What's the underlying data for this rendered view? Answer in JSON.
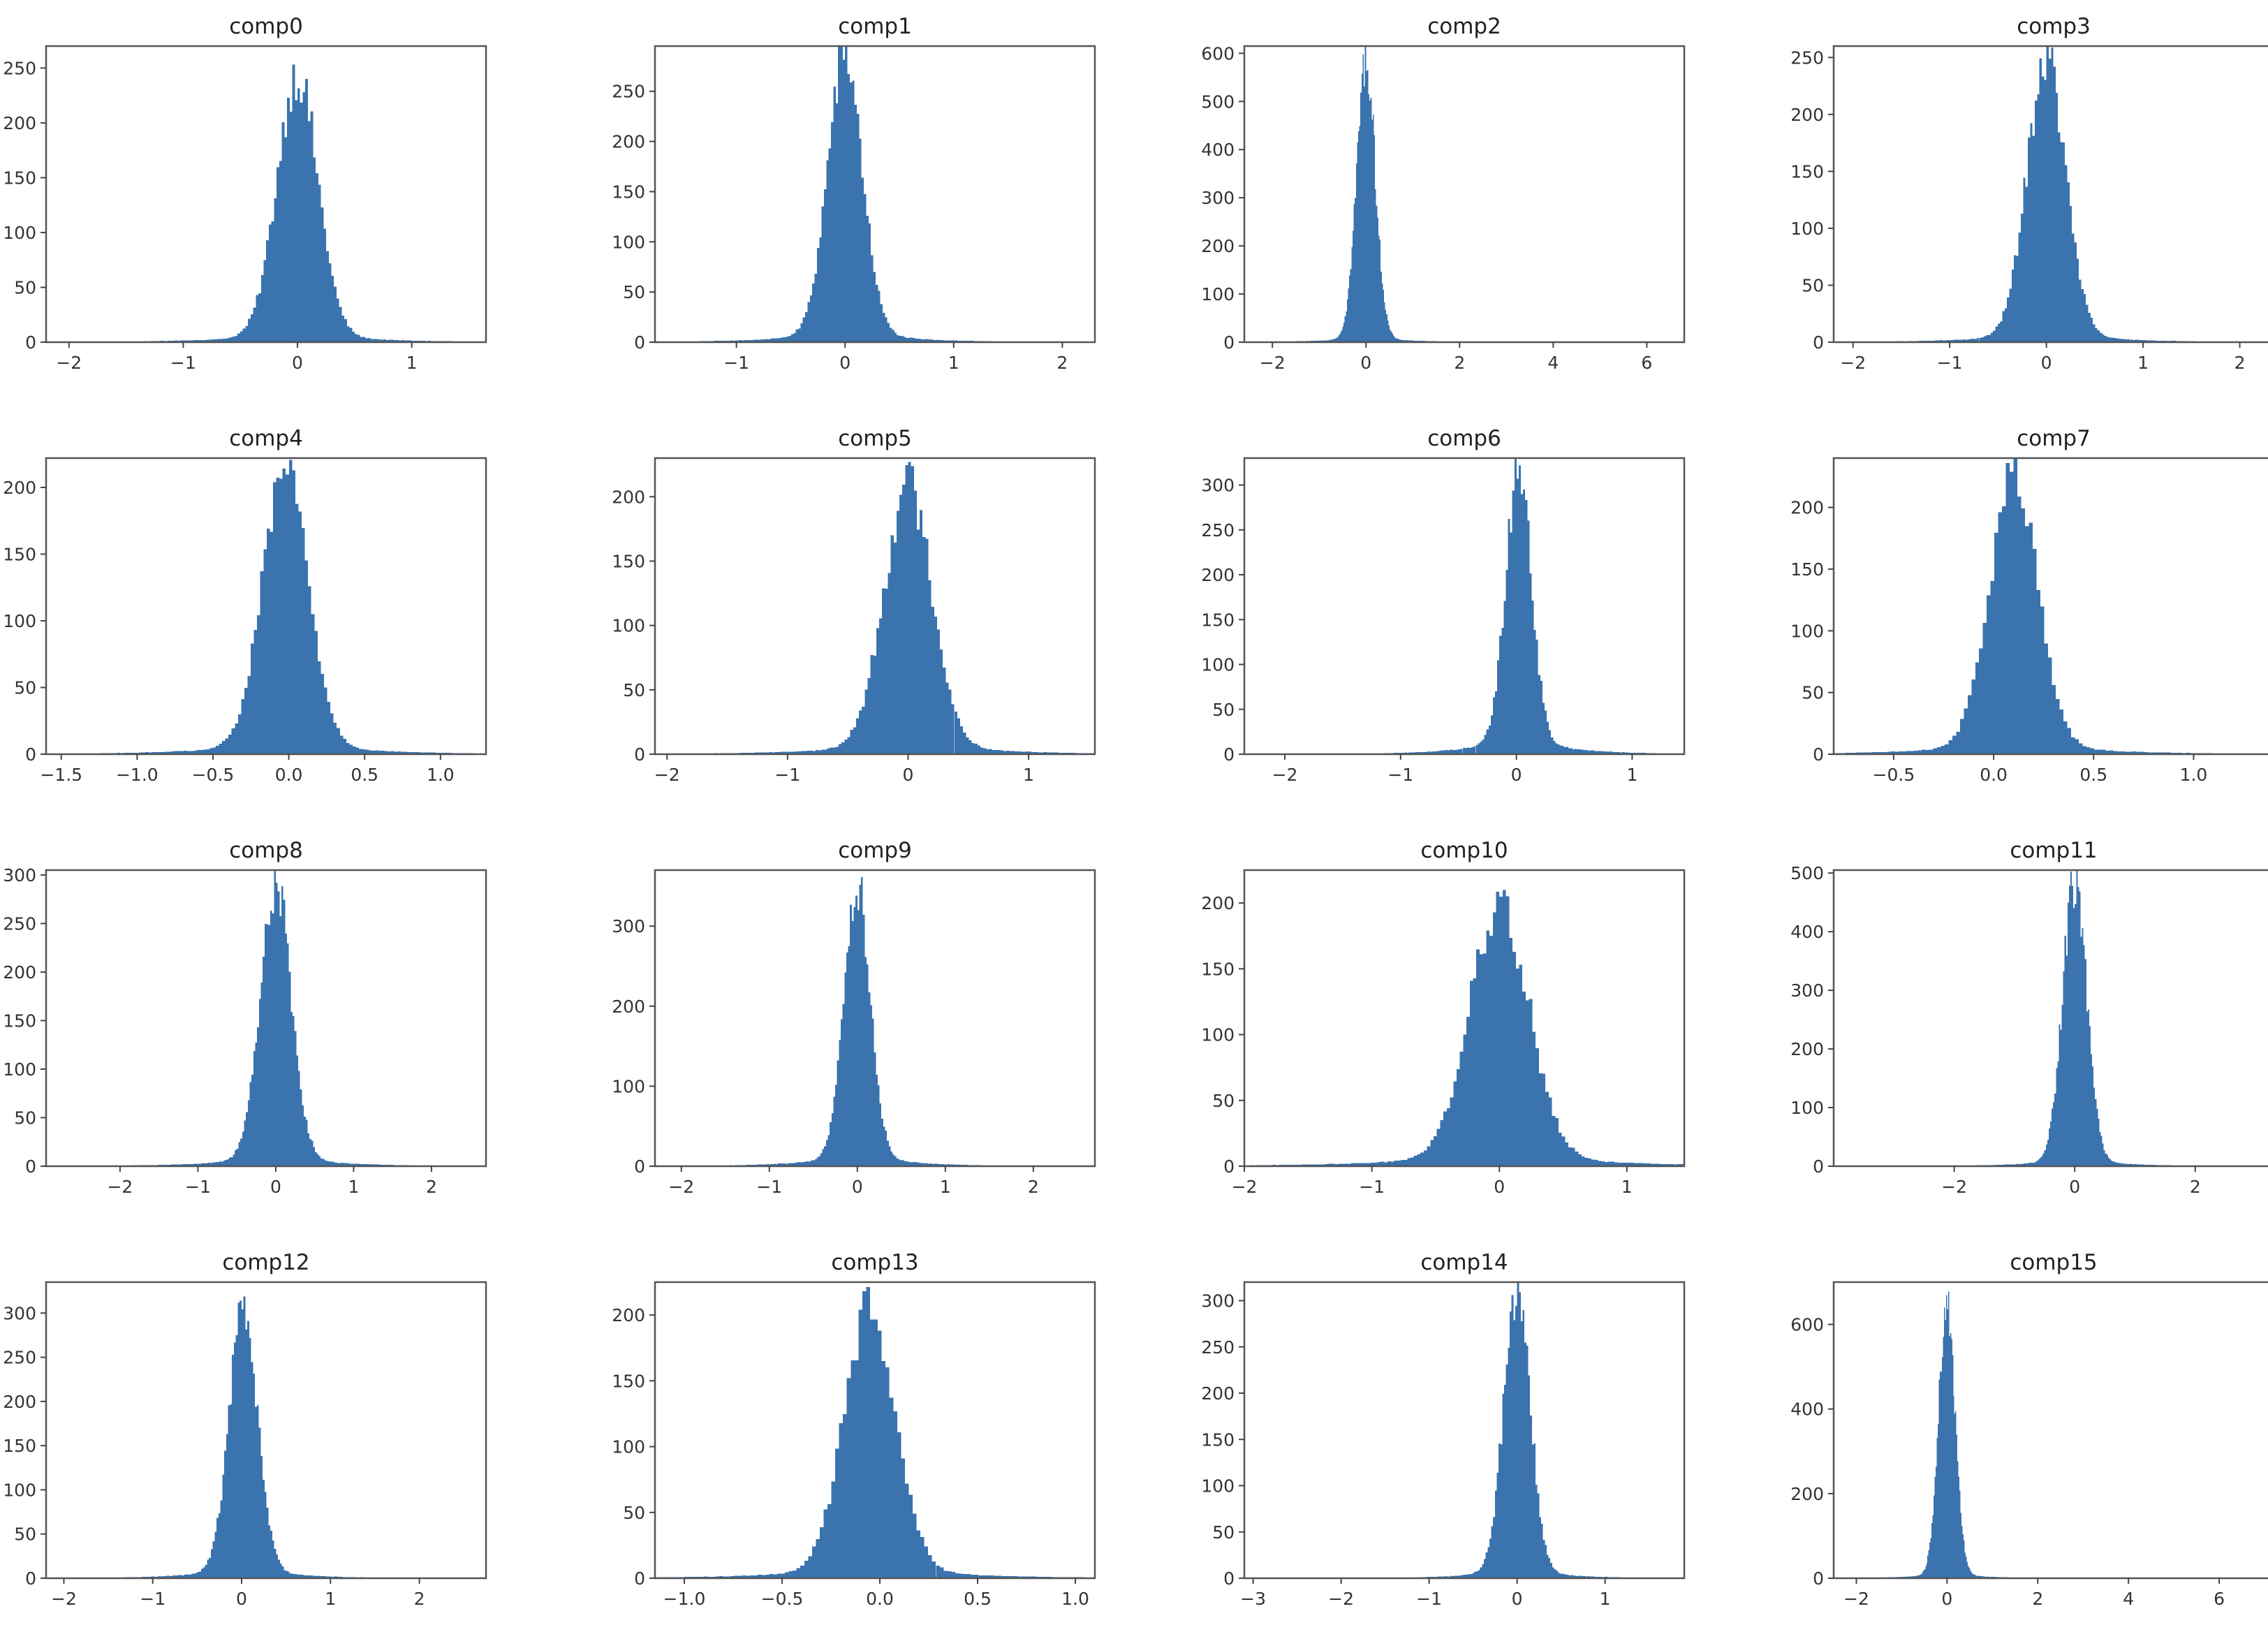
{
  "colors": {
    "bar": "#3a73ae",
    "frame": "#555555",
    "text": "#222222"
  },
  "chart_data": [
    {
      "type": "bar",
      "title": "comp0",
      "x_ticks": [
        -2,
        -1,
        0,
        1
      ],
      "x_tick_labels": [
        "−2",
        "−1",
        "0",
        "1"
      ],
      "y_ticks": [
        0,
        50,
        100,
        150,
        200,
        250
      ],
      "xlim": [
        -2.2,
        1.65
      ],
      "ylim": [
        0,
        270
      ],
      "distribution": {
        "mean": 0.0,
        "std": 0.18,
        "peak": 235,
        "tail": 0.04,
        "tail_scale": 3.0
      },
      "bins": 200
    },
    {
      "type": "bar",
      "title": "comp1",
      "x_ticks": [
        -1,
        0,
        1,
        2
      ],
      "x_tick_labels": [
        "−1",
        "0",
        "1",
        "2"
      ],
      "y_ticks": [
        0,
        50,
        100,
        150,
        200,
        250
      ],
      "xlim": [
        -1.75,
        2.3
      ],
      "ylim": [
        0,
        295
      ],
      "distribution": {
        "mean": 0.0,
        "std": 0.16,
        "peak": 275,
        "tail": 0.05,
        "tail_scale": 3.0
      },
      "bins": 200
    },
    {
      "type": "bar",
      "title": "comp2",
      "x_ticks": [
        -2,
        0,
        2,
        4,
        6
      ],
      "x_tick_labels": [
        "−2",
        "0",
        "2",
        "4",
        "6"
      ],
      "y_ticks": [
        0,
        100,
        200,
        300,
        400,
        500,
        600
      ],
      "xlim": [
        -2.6,
        6.8
      ],
      "ylim": [
        0,
        615
      ],
      "distribution": {
        "mean": 0.0,
        "std": 0.2,
        "peak": 575,
        "tail": 0.02,
        "tail_scale": 4.0
      },
      "bins": 200
    },
    {
      "type": "bar",
      "title": "comp3",
      "x_ticks": [
        -2,
        -1,
        0,
        1,
        2
      ],
      "x_tick_labels": [
        "−2",
        "−1",
        "0",
        "1",
        "2"
      ],
      "y_ticks": [
        0,
        50,
        100,
        150,
        200,
        250
      ],
      "xlim": [
        -2.2,
        2.35
      ],
      "ylim": [
        0,
        260
      ],
      "distribution": {
        "mean": 0.0,
        "std": 0.2,
        "peak": 240,
        "tail": 0.04,
        "tail_scale": 3.0
      },
      "bins": 200
    },
    {
      "type": "bar",
      "title": "comp4",
      "x_ticks": [
        -1.5,
        -1.0,
        -0.5,
        0.0,
        0.5,
        1.0
      ],
      "x_tick_labels": [
        "−1.5",
        "−1.0",
        "−0.5",
        "0.0",
        "0.5",
        "1.0"
      ],
      "y_ticks": [
        0,
        50,
        100,
        150,
        200
      ],
      "xlim": [
        -1.6,
        1.3
      ],
      "ylim": [
        0,
        222
      ],
      "distribution": {
        "mean": -0.02,
        "std": 0.15,
        "peak": 205,
        "tail": 0.05,
        "tail_scale": 3.0
      },
      "bins": 200
    },
    {
      "type": "bar",
      "title": "comp5",
      "x_ticks": [
        -2,
        -1,
        0,
        1
      ],
      "x_tick_labels": [
        "−2",
        "−1",
        "0",
        "1"
      ],
      "y_ticks": [
        0,
        50,
        100,
        150,
        200
      ],
      "xlim": [
        -2.1,
        1.55
      ],
      "ylim": [
        0,
        230
      ],
      "distribution": {
        "mean": 0.0,
        "std": 0.2,
        "peak": 200,
        "tail": 0.05,
        "tail_scale": 3.0
      },
      "bins": 200
    },
    {
      "type": "bar",
      "title": "comp6",
      "x_ticks": [
        -2,
        -1,
        0,
        1
      ],
      "x_tick_labels": [
        "−2",
        "−1",
        "0",
        "1"
      ],
      "y_ticks": [
        0,
        50,
        100,
        150,
        200,
        250,
        300
      ],
      "xlim": [
        -2.35,
        1.45
      ],
      "ylim": [
        0,
        330
      ],
      "distribution": {
        "mean": 0.02,
        "std": 0.11,
        "peak": 305,
        "tail": 0.07,
        "tail_scale": 3.5
      },
      "bins": 200
    },
    {
      "type": "bar",
      "title": "comp7",
      "x_ticks": [
        -0.5,
        0.0,
        0.5,
        1.0
      ],
      "x_tick_labels": [
        "−0.5",
        "0.0",
        "0.5",
        "1.0"
      ],
      "y_ticks": [
        0,
        50,
        100,
        150,
        200
      ],
      "xlim": [
        -0.8,
        1.4
      ],
      "ylim": [
        0,
        240
      ],
      "distribution": {
        "mean": 0.1,
        "std": 0.12,
        "peak": 215,
        "tail": 0.05,
        "tail_scale": 3.0
      },
      "bins": 200
    },
    {
      "type": "bar",
      "title": "comp8",
      "x_ticks": [
        -2,
        -1,
        0,
        1,
        2
      ],
      "x_tick_labels": [
        "−2",
        "−1",
        "0",
        "1",
        "2"
      ],
      "y_ticks": [
        0,
        50,
        100,
        150,
        200,
        250,
        300
      ],
      "xlim": [
        -2.95,
        2.7
      ],
      "ylim": [
        0,
        305
      ],
      "distribution": {
        "mean": 0.0,
        "std": 0.2,
        "peak": 280,
        "tail": 0.04,
        "tail_scale": 3.5
      },
      "bins": 200
    },
    {
      "type": "bar",
      "title": "comp9",
      "x_ticks": [
        -2,
        -1,
        0,
        1,
        2
      ],
      "x_tick_labels": [
        "−2",
        "−1",
        "0",
        "1",
        "2"
      ],
      "y_ticks": [
        0,
        100,
        200,
        300
      ],
      "xlim": [
        -2.3,
        2.7
      ],
      "ylim": [
        0,
        370
      ],
      "distribution": {
        "mean": 0.0,
        "std": 0.15,
        "peak": 335,
        "tail": 0.05,
        "tail_scale": 3.5
      },
      "bins": 200
    },
    {
      "type": "bar",
      "title": "comp10",
      "x_ticks": [
        -2,
        -1,
        0,
        1
      ],
      "x_tick_labels": [
        "−2",
        "−1",
        "0",
        "1"
      ],
      "y_ticks": [
        0,
        50,
        100,
        150,
        200
      ],
      "xlim": [
        -2.0,
        1.45
      ],
      "ylim": [
        0,
        225
      ],
      "distribution": {
        "mean": 0.0,
        "std": 0.23,
        "peak": 190,
        "tail": 0.06,
        "tail_scale": 3.0
      },
      "bins": 200
    },
    {
      "type": "bar",
      "title": "comp11",
      "x_ticks": [
        -2,
        0,
        2
      ],
      "x_tick_labels": [
        "−2",
        "0",
        "2"
      ],
      "y_ticks": [
        0,
        100,
        200,
        300,
        400,
        500
      ],
      "xlim": [
        -4.0,
        3.3
      ],
      "ylim": [
        0,
        505
      ],
      "distribution": {
        "mean": 0.0,
        "std": 0.2,
        "peak": 470,
        "tail": 0.03,
        "tail_scale": 3.5
      },
      "bins": 200
    },
    {
      "type": "bar",
      "title": "comp12",
      "x_ticks": [
        -2,
        -1,
        0,
        1,
        2
      ],
      "x_tick_labels": [
        "−2",
        "−1",
        "0",
        "1",
        "2"
      ],
      "y_ticks": [
        0,
        50,
        100,
        150,
        200,
        250,
        300
      ],
      "xlim": [
        -2.2,
        2.75
      ],
      "ylim": [
        0,
        335
      ],
      "distribution": {
        "mean": 0.02,
        "std": 0.16,
        "peak": 295,
        "tail": 0.05,
        "tail_scale": 3.0
      },
      "bins": 200
    },
    {
      "type": "bar",
      "title": "comp13",
      "x_ticks": [
        -1.0,
        -0.5,
        0.0,
        0.5,
        1.0
      ],
      "x_tick_labels": [
        "−1.0",
        "−0.5",
        "0.0",
        "0.5",
        "1.0"
      ],
      "y_ticks": [
        0,
        50,
        100,
        150,
        200
      ],
      "xlim": [
        -1.15,
        1.1
      ],
      "ylim": [
        0,
        225
      ],
      "distribution": {
        "mean": -0.05,
        "std": 0.13,
        "peak": 200,
        "tail": 0.05,
        "tail_scale": 3.0
      },
      "bins": 200
    },
    {
      "type": "bar",
      "title": "comp14",
      "x_ticks": [
        -3,
        -2,
        -1,
        0,
        1
      ],
      "x_tick_labels": [
        "−3",
        "−2",
        "−1",
        "0",
        "1"
      ],
      "y_ticks": [
        0,
        50,
        100,
        150,
        200,
        250,
        300
      ],
      "xlim": [
        -3.1,
        1.9
      ],
      "ylim": [
        0,
        320
      ],
      "distribution": {
        "mean": 0.0,
        "std": 0.15,
        "peak": 305,
        "tail": 0.04,
        "tail_scale": 3.0
      },
      "bins": 200
    },
    {
      "type": "bar",
      "title": "comp15",
      "x_ticks": [
        -2,
        0,
        2,
        4,
        6
      ],
      "x_tick_labels": [
        "−2",
        "0",
        "2",
        "4",
        "6"
      ],
      "y_ticks": [
        0,
        200,
        400,
        600
      ],
      "xlim": [
        -2.5,
        7.2
      ],
      "ylim": [
        0,
        700
      ],
      "distribution": {
        "mean": 0.0,
        "std": 0.18,
        "peak": 655,
        "tail": 0.02,
        "tail_scale": 4.0
      },
      "bins": 200
    }
  ]
}
